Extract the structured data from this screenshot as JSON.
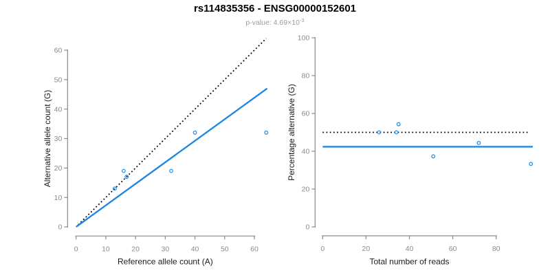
{
  "colors": {
    "accent_blue": "#1E86E5",
    "axis_gray": "#8A8A8A",
    "tick_label_gray": "#8A8A8A",
    "axis_title_dark": "#1A1A1A",
    "subtitle_gray": "#9B9B9B",
    "line_black": "#000000",
    "background": "#FFFFFF"
  },
  "chart_data": {
    "type": "scatter",
    "title": "rs114835356 - ENSG00000152601",
    "subtitle_base": "p-value: 4.69×10",
    "subtitle_exponent": "-3",
    "panels": [
      {
        "name": "allele-count-scatter",
        "xlabel": "Reference allele count (A)",
        "ylabel": "Alternative allele count (G)",
        "xticks": [
          0,
          10,
          20,
          30,
          40,
          50,
          60
        ],
        "yticks": [
          0,
          10,
          20,
          30,
          40,
          50,
          60
        ],
        "xlim": [
          0,
          64.5
        ],
        "ylim": [
          0,
          64.5
        ],
        "grid": false,
        "points": [
          [
            13,
            13
          ],
          [
            16,
            19
          ],
          [
            17,
            17
          ],
          [
            32,
            19
          ],
          [
            40,
            32
          ],
          [
            64,
            32
          ]
        ],
        "lines": [
          {
            "name": "identity-line",
            "style": "dotted",
            "color": "#000000",
            "x1": 0.7,
            "y1": 0.7,
            "x2": 64,
            "y2": 64
          },
          {
            "name": "regression-line",
            "style": "solid",
            "color": "#1E86E5",
            "x1": 0,
            "y1": 0,
            "x2": 64.3,
            "y2": 47
          }
        ]
      },
      {
        "name": "percentage-scatter",
        "xlabel": "Total number of reads",
        "ylabel": "Percentage alternative (G)",
        "xticks": [
          0,
          20,
          40,
          60,
          80
        ],
        "yticks": [
          0,
          20,
          40,
          60,
          80,
          100
        ],
        "xlim": [
          0,
          97
        ],
        "ylim": [
          0,
          100
        ],
        "grid": false,
        "points": [
          [
            26,
            50
          ],
          [
            35,
            54.3
          ],
          [
            34,
            50
          ],
          [
            51,
            37.3
          ],
          [
            72,
            44.4
          ],
          [
            96,
            33.3
          ]
        ],
        "lines": [
          {
            "name": "expected-50pct-line",
            "style": "dotted",
            "color": "#000000",
            "x1": 0,
            "y1": 50,
            "x2": 95,
            "y2": 50
          },
          {
            "name": "mean-percentage-line",
            "style": "solid",
            "color": "#1E86E5",
            "x1": 0,
            "y1": 42.4,
            "x2": 96.9,
            "y2": 42.4
          }
        ]
      }
    ]
  }
}
